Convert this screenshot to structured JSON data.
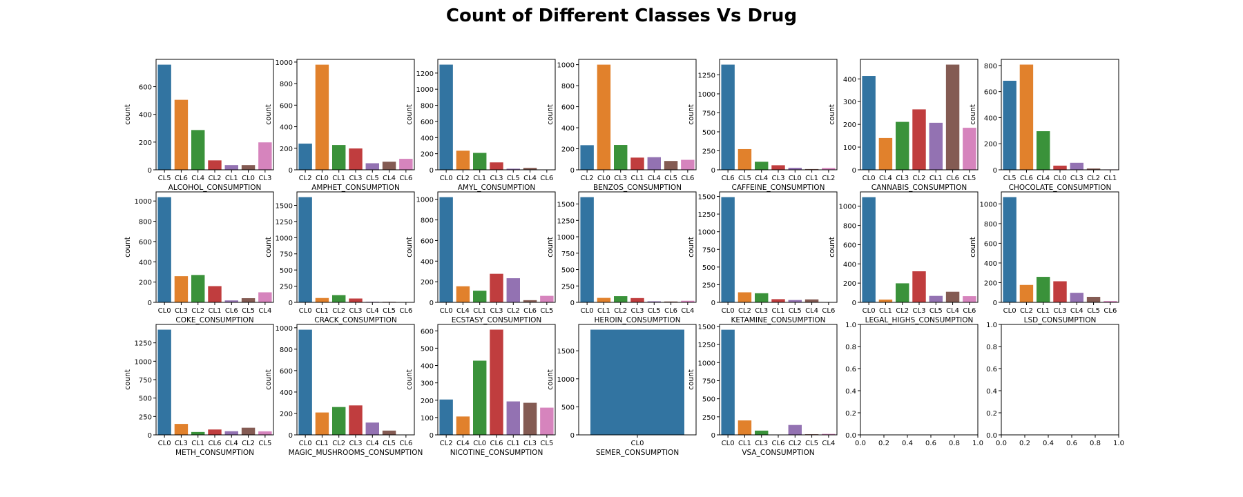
{
  "figure": {
    "title": "Count of Different Classes Vs Drug"
  },
  "colors": [
    "#3274a1",
    "#e1812c",
    "#3a923a",
    "#c03d3e",
    "#9372b2",
    "#845b53",
    "#d684bd"
  ],
  "chart_data": [
    {
      "type": "bar",
      "xlabel": "ALCOHOL_CONSUMPTION",
      "ylabel": "count",
      "categories": [
        "CL5",
        "CL6",
        "CL4",
        "CL2",
        "CL1",
        "CL0",
        "CL3"
      ],
      "values": [
        759,
        505,
        287,
        68,
        34,
        34,
        198
      ],
      "yticks": [
        0,
        200,
        400,
        600
      ],
      "ylim": [
        0,
        797
      ]
    },
    {
      "type": "bar",
      "xlabel": "AMPHET_CONSUMPTION",
      "ylabel": "count",
      "categories": [
        "CL2",
        "CL0",
        "CL1",
        "CL3",
        "CL5",
        "CL4",
        "CL6"
      ],
      "values": [
        243,
        976,
        230,
        198,
        61,
        75,
        102
      ],
      "yticks": [
        0,
        200,
        400,
        600,
        800,
        1000
      ],
      "ylim": [
        0,
        1025
      ]
    },
    {
      "type": "bar",
      "xlabel": "AMYL_CONSUMPTION",
      "ylabel": "count",
      "categories": [
        "CL0",
        "CL2",
        "CL1",
        "CL3",
        "CL5",
        "CL4",
        "CL6"
      ],
      "values": [
        1305,
        237,
        210,
        92,
        14,
        24,
        3
      ],
      "yticks": [
        0,
        200,
        400,
        600,
        800,
        1000,
        1200
      ],
      "ylim": [
        0,
        1370
      ]
    },
    {
      "type": "bar",
      "xlabel": "BENZOS_CONSUMPTION",
      "ylabel": "count",
      "categories": [
        "CL2",
        "CL0",
        "CL3",
        "CL1",
        "CL4",
        "CL5",
        "CL6"
      ],
      "values": [
        234,
        1000,
        236,
        116,
        120,
        84,
        95
      ],
      "yticks": [
        0,
        200,
        400,
        600,
        800,
        1000
      ],
      "ylim": [
        0,
        1050
      ]
    },
    {
      "type": "bar",
      "xlabel": "CAFFEINE_CONSUMPTION",
      "ylabel": "count",
      "categories": [
        "CL6",
        "CL5",
        "CL4",
        "CL3",
        "CL0",
        "CL1",
        "CL2"
      ],
      "values": [
        1385,
        273,
        106,
        60,
        27,
        10,
        24
      ],
      "yticks": [
        0,
        250,
        500,
        750,
        1000,
        1250
      ],
      "ylim": [
        0,
        1454
      ]
    },
    {
      "type": "bar",
      "xlabel": "CANNABIS_CONSUMPTION",
      "ylabel": "count",
      "categories": [
        "CL0",
        "CL4",
        "CL3",
        "CL2",
        "CL1",
        "CL6",
        "CL5"
      ],
      "values": [
        413,
        140,
        211,
        266,
        207,
        463,
        185
      ],
      "yticks": [
        0,
        100,
        200,
        300,
        400
      ],
      "ylim": [
        0,
        486
      ]
    },
    {
      "type": "bar",
      "xlabel": "CHOCOLATE_CONSUMPTION",
      "ylabel": "count",
      "categories": [
        "CL5",
        "CL6",
        "CL4",
        "CL0",
        "CL3",
        "CL2",
        "CL1"
      ],
      "values": [
        683,
        807,
        296,
        32,
        54,
        10,
        3
      ],
      "yticks": [
        0,
        200,
        400,
        600,
        800
      ],
      "ylim": [
        0,
        847
      ]
    },
    {
      "type": "bar",
      "xlabel": "COKE_CONSUMPTION",
      "ylabel": "count",
      "categories": [
        "CL0",
        "CL3",
        "CL2",
        "CL1",
        "CL6",
        "CL5",
        "CL4"
      ],
      "values": [
        1038,
        258,
        270,
        160,
        19,
        41,
        99
      ],
      "yticks": [
        0,
        200,
        400,
        600,
        800,
        1000
      ],
      "ylim": [
        0,
        1090
      ]
    },
    {
      "type": "bar",
      "xlabel": "CRACK_CONSUMPTION",
      "ylabel": "count",
      "categories": [
        "CL0",
        "CL1",
        "CL2",
        "CL3",
        "CL4",
        "CL5",
        "CL6"
      ],
      "values": [
        1627,
        67,
        112,
        59,
        9,
        9,
        2
      ],
      "yticks": [
        0,
        250,
        500,
        750,
        1000,
        1250,
        1500
      ],
      "ylim": [
        0,
        1708
      ]
    },
    {
      "type": "bar",
      "xlabel": "ECSTASY_CONSUMPTION",
      "ylabel": "count",
      "categories": [
        "CL0",
        "CL4",
        "CL1",
        "CL3",
        "CL2",
        "CL6",
        "CL5"
      ],
      "values": [
        1021,
        156,
        113,
        277,
        234,
        21,
        63
      ],
      "yticks": [
        0,
        200,
        400,
        600,
        800,
        1000
      ],
      "ylim": [
        0,
        1072
      ]
    },
    {
      "type": "bar",
      "xlabel": "HEROIN_CONSUMPTION",
      "ylabel": "count",
      "categories": [
        "CL0",
        "CL1",
        "CL2",
        "CL3",
        "CL5",
        "CL6",
        "CL4"
      ],
      "values": [
        1605,
        68,
        94,
        65,
        16,
        13,
        24
      ],
      "yticks": [
        0,
        250,
        500,
        750,
        1000,
        1250,
        1500
      ],
      "ylim": [
        0,
        1685
      ]
    },
    {
      "type": "bar",
      "xlabel": "KETAMINE_CONSUMPTION",
      "ylabel": "count",
      "categories": [
        "CL0",
        "CL2",
        "CL3",
        "CL1",
        "CL5",
        "CL4",
        "CL6"
      ],
      "values": [
        1490,
        142,
        129,
        45,
        33,
        42,
        4
      ],
      "yticks": [
        0,
        250,
        500,
        750,
        1000,
        1250,
        1500
      ],
      "ylim": [
        0,
        1564
      ]
    },
    {
      "type": "bar",
      "xlabel": "LEGAL_HIGHS_CONSUMPTION",
      "ylabel": "count",
      "categories": [
        "CL0",
        "CL1",
        "CL2",
        "CL3",
        "CL5",
        "CL4",
        "CL6"
      ],
      "values": [
        1094,
        29,
        198,
        323,
        67,
        110,
        64
      ],
      "yticks": [
        0,
        200,
        400,
        600,
        800,
        1000
      ],
      "ylim": [
        0,
        1149
      ]
    },
    {
      "type": "bar",
      "xlabel": "LSD_CONSUMPTION",
      "ylabel": "count",
      "categories": [
        "CL0",
        "CL2",
        "CL1",
        "CL3",
        "CL4",
        "CL5",
        "CL6"
      ],
      "values": [
        1069,
        177,
        259,
        214,
        97,
        56,
        13
      ],
      "yticks": [
        0,
        200,
        400,
        600,
        800,
        1000
      ],
      "ylim": [
        0,
        1122
      ]
    },
    {
      "type": "bar",
      "xlabel": "METH_CONSUMPTION",
      "ylabel": "count",
      "categories": [
        "CL0",
        "CL3",
        "CL1",
        "CL6",
        "CL4",
        "CL2",
        "CL5"
      ],
      "values": [
        1429,
        149,
        39,
        73,
        50,
        97,
        48
      ],
      "yticks": [
        0,
        250,
        500,
        750,
        1000,
        1250
      ],
      "ylim": [
        0,
        1500
      ]
    },
    {
      "type": "bar",
      "xlabel": "MAGIC_MUSHROOMS_CONSUMPTION",
      "ylabel": "count",
      "categories": [
        "CL0",
        "CL1",
        "CL2",
        "CL3",
        "CL4",
        "CL5",
        "CL6"
      ],
      "values": [
        982,
        209,
        260,
        275,
        115,
        40,
        3
      ],
      "yticks": [
        0,
        200,
        400,
        600,
        800,
        1000
      ],
      "ylim": [
        0,
        1031
      ]
    },
    {
      "type": "bar",
      "xlabel": "NICOTINE_CONSUMPTION",
      "ylabel": "count",
      "categories": [
        "CL2",
        "CL4",
        "CL0",
        "CL6",
        "CL1",
        "CL3",
        "CL5"
      ],
      "values": [
        204,
        106,
        428,
        607,
        193,
        185,
        157
      ],
      "yticks": [
        0,
        100,
        200,
        300,
        400,
        500,
        600
      ],
      "ylim": [
        0,
        637
      ]
    },
    {
      "type": "bar",
      "xlabel": "SEMER_CONSUMPTION",
      "ylabel": "count",
      "categories": [
        "CL0"
      ],
      "values": [
        1877
      ],
      "yticks": [
        0,
        500,
        1000,
        1500
      ],
      "ylim": [
        0,
        1970
      ]
    },
    {
      "type": "bar",
      "xlabel": "VSA_CONSUMPTION",
      "ylabel": "count",
      "categories": [
        "CL0",
        "CL1",
        "CL3",
        "CL6",
        "CL2",
        "CL5",
        "CL4"
      ],
      "values": [
        1455,
        200,
        59,
        3,
        137,
        9,
        13
      ],
      "yticks": [
        0,
        250,
        500,
        750,
        1000,
        1250,
        1500
      ],
      "ylim": [
        0,
        1528
      ]
    },
    {
      "type": "bar",
      "xlabel": "",
      "ylabel": "",
      "categories": [],
      "values": [],
      "xticks": [
        "0.0",
        "0.2",
        "0.4",
        "0.6",
        "0.8",
        "1.0"
      ],
      "yticks": [
        "0.0",
        "0.2",
        "0.4",
        "0.6",
        "0.8",
        "1.0"
      ],
      "xlim": [
        0,
        1
      ],
      "ylim": [
        0,
        1
      ]
    },
    {
      "type": "bar",
      "xlabel": "",
      "ylabel": "",
      "categories": [],
      "values": [],
      "xticks": [
        "0.0",
        "0.2",
        "0.4",
        "0.6",
        "0.8",
        "1.0"
      ],
      "yticks": [
        "0.0",
        "0.2",
        "0.4",
        "0.6",
        "0.8",
        "1.0"
      ],
      "xlim": [
        0,
        1
      ],
      "ylim": [
        0,
        1
      ]
    }
  ]
}
